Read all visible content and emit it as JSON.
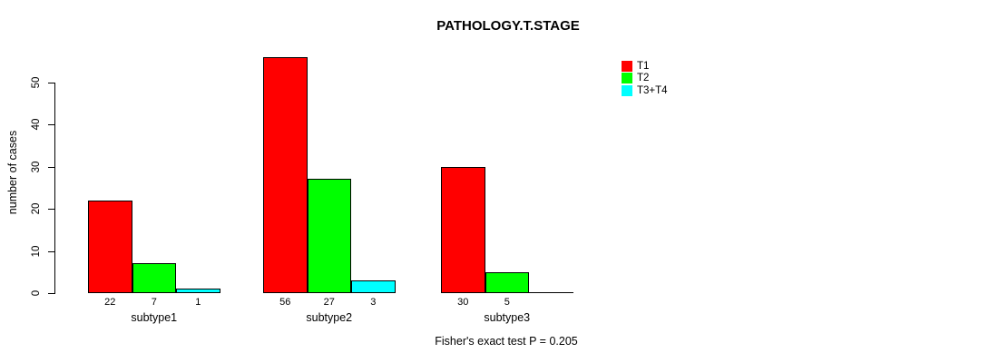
{
  "chart_data": {
    "type": "bar",
    "title": "PATHOLOGY.T.STAGE",
    "ylabel": "number of cases",
    "xlabel": "",
    "categories": [
      "subtype1",
      "subtype2",
      "subtype3"
    ],
    "series": [
      {
        "name": "T1",
        "color": "#ff0000",
        "values": [
          22,
          56,
          30
        ]
      },
      {
        "name": "T2",
        "color": "#00ff00",
        "values": [
          7,
          27,
          5
        ]
      },
      {
        "name": "T3+T4",
        "color": "#00ffff",
        "values": [
          1,
          3,
          0
        ]
      }
    ],
    "bar_value_labels": [
      [
        "22",
        "7",
        "1"
      ],
      [
        "56",
        "27",
        "3"
      ],
      [
        "30",
        "5",
        ""
      ]
    ],
    "yticks": [
      0,
      10,
      20,
      30,
      40,
      50
    ],
    "ylim": [
      0,
      50
    ],
    "grid": false,
    "legend_position": "top-right",
    "annotation": "Fisher's exact test P = 0.205",
    "colors": {
      "axis": "#000000",
      "bar_border": "#000000",
      "background": "#ffffff"
    }
  }
}
